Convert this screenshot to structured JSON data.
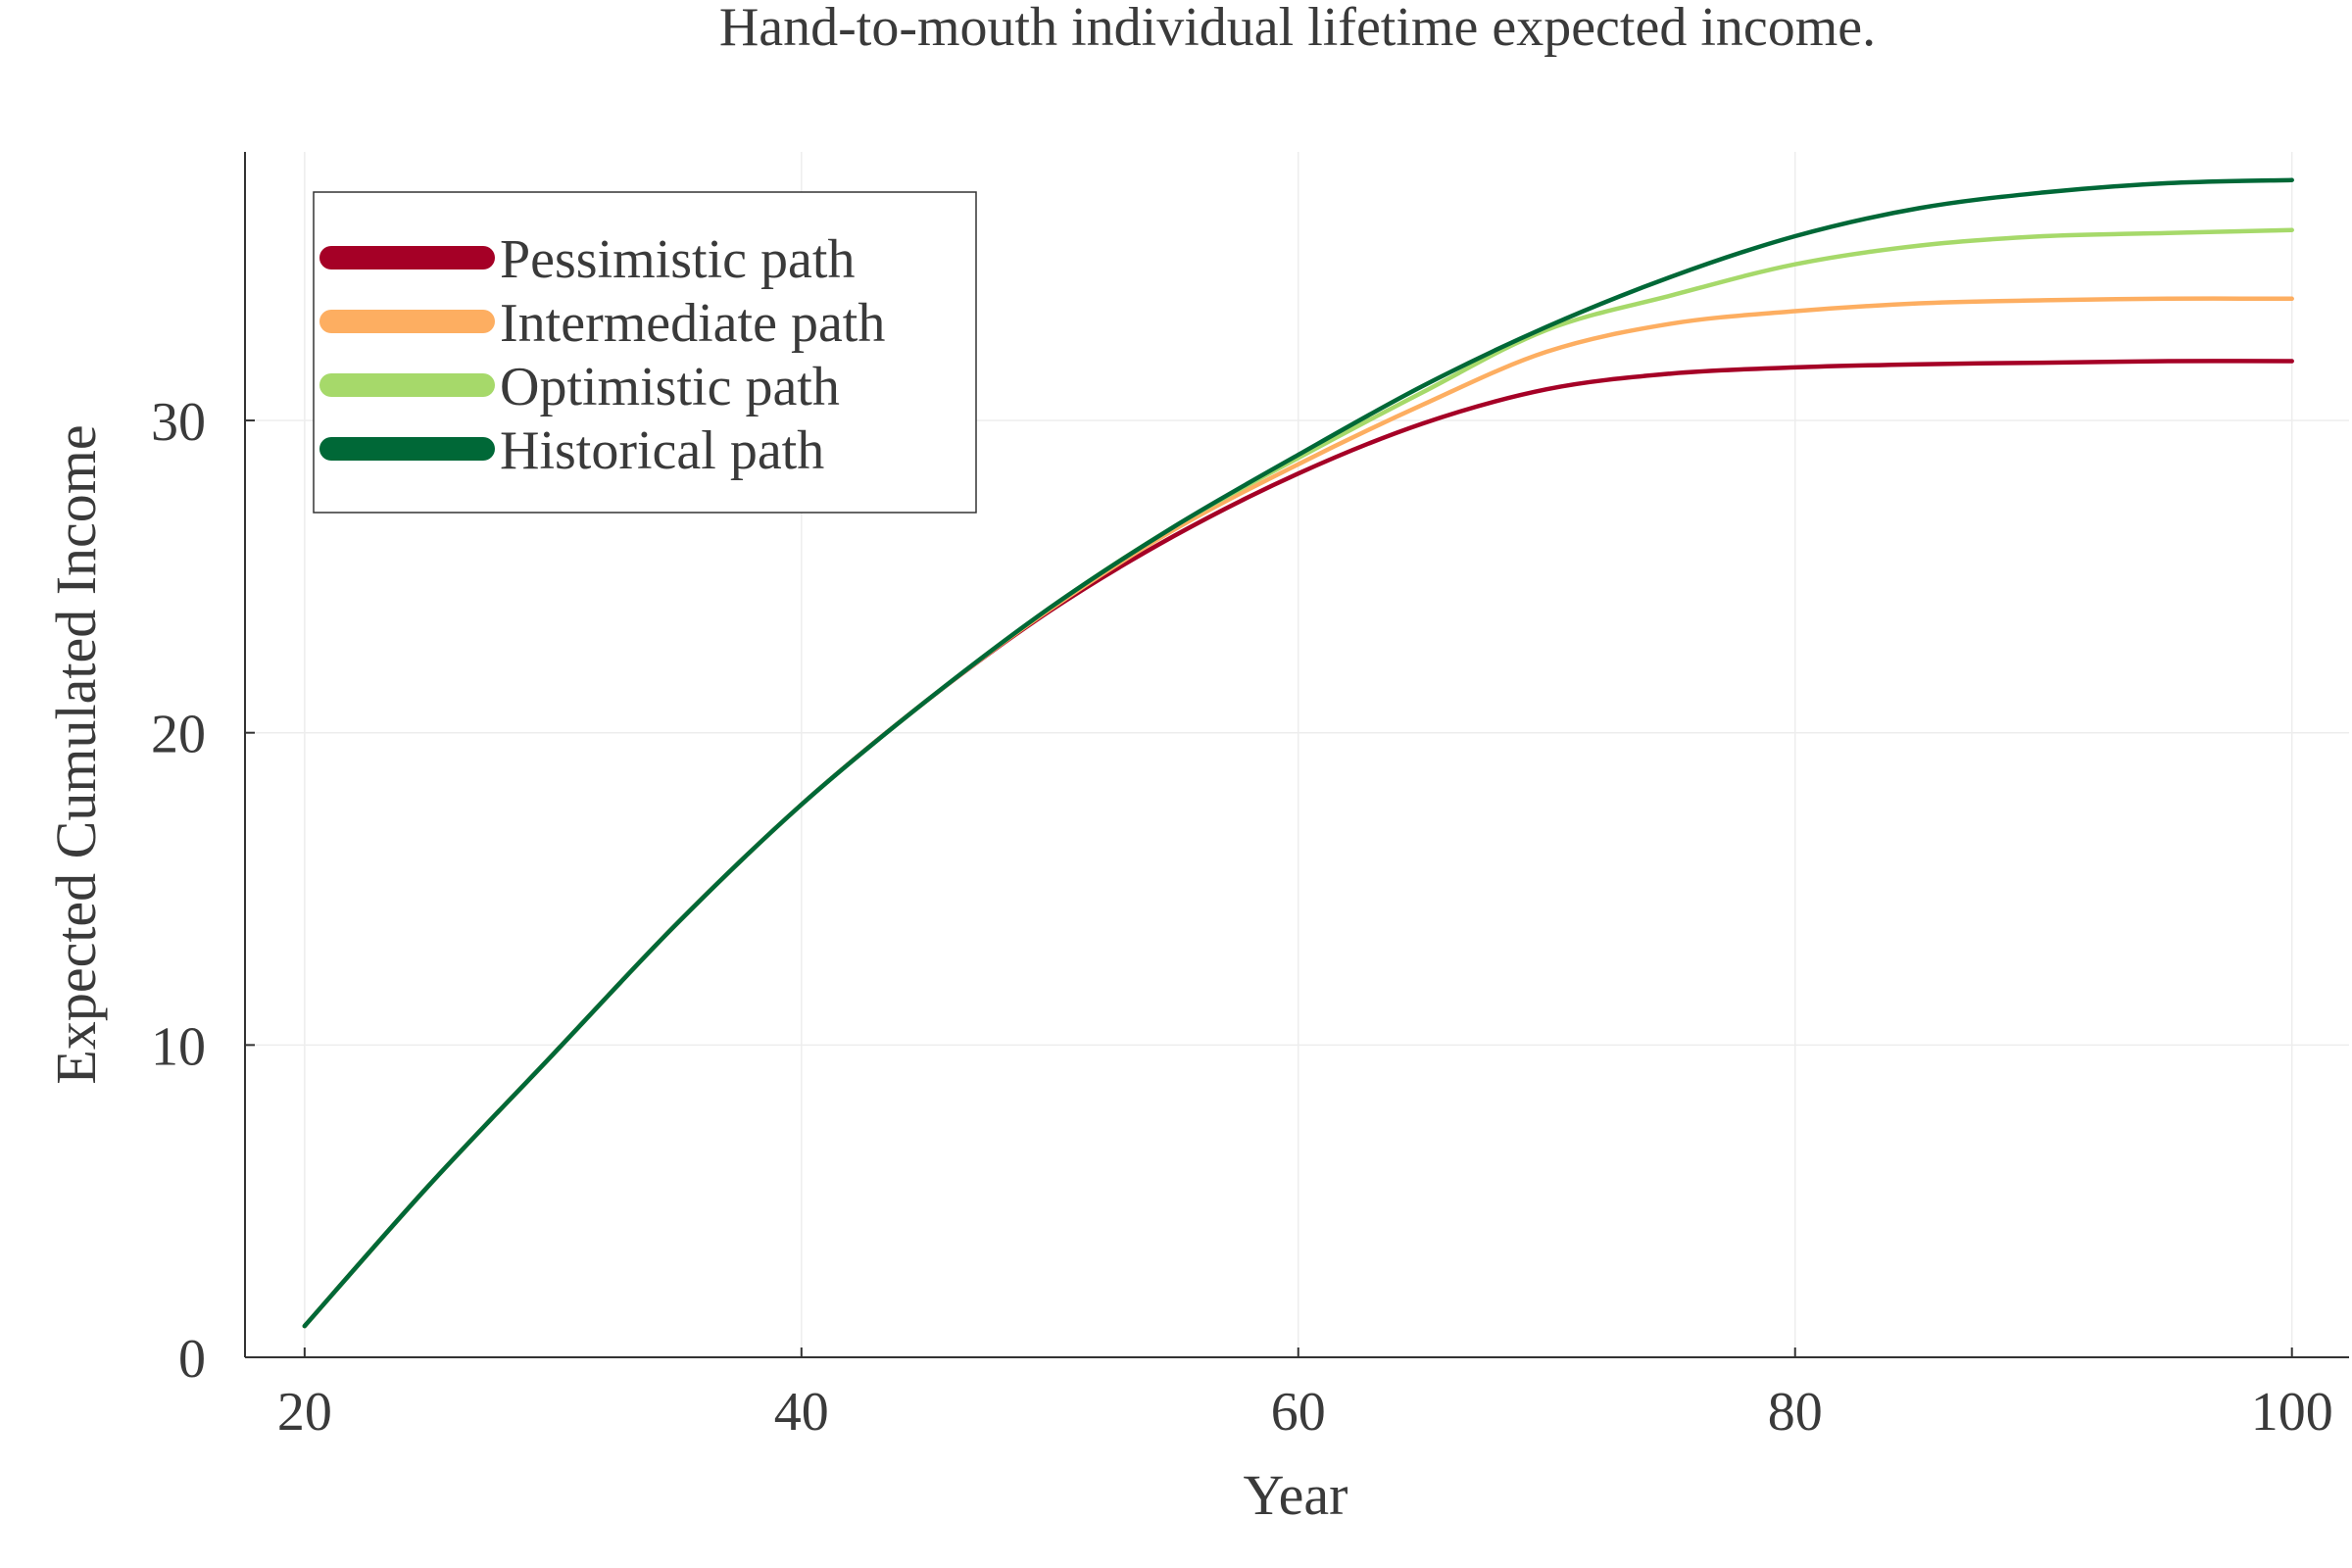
{
  "chart_data": {
    "type": "line",
    "title": "Hand-to-mouth individual lifetime expected income.",
    "xlabel": "Year",
    "ylabel": "Expected Cumulated Income",
    "xlim": [
      17.6,
      102.3
    ],
    "ylim": [
      0,
      38.6
    ],
    "xticks": [
      20,
      40,
      60,
      80,
      100
    ],
    "yticks": [
      0,
      10,
      20,
      30
    ],
    "grid": true,
    "legend_position": "top-left",
    "x": [
      20,
      25,
      30,
      35,
      40,
      45,
      50,
      55,
      60,
      65,
      70,
      75,
      80,
      85,
      90,
      95,
      100
    ],
    "series": [
      {
        "name": "Pessimistic path",
        "color": "#a50026",
        "values": [
          1.0,
          5.5,
          9.7,
          13.9,
          17.7,
          21.0,
          23.9,
          26.3,
          28.3,
          29.9,
          31.0,
          31.5,
          31.7,
          31.8,
          31.85,
          31.9,
          31.9
        ]
      },
      {
        "name": "Intermediate path",
        "color": "#fdae61",
        "values": [
          1.0,
          5.5,
          9.7,
          13.9,
          17.7,
          21.0,
          23.95,
          26.5,
          28.6,
          30.5,
          32.2,
          33.1,
          33.5,
          33.75,
          33.85,
          33.9,
          33.9
        ]
      },
      {
        "name": "Optimistic path",
        "color": "#a6d96a",
        "values": [
          1.0,
          5.5,
          9.7,
          13.9,
          17.7,
          21.0,
          24.0,
          26.6,
          28.8,
          30.9,
          32.9,
          34.0,
          35.0,
          35.6,
          35.9,
          36.0,
          36.1
        ]
      },
      {
        "name": "Historical path",
        "color": "#006837",
        "values": [
          1.0,
          5.5,
          9.7,
          13.9,
          17.7,
          21.0,
          24.0,
          26.6,
          28.9,
          31.1,
          33.0,
          34.6,
          35.9,
          36.8,
          37.3,
          37.6,
          37.7
        ]
      }
    ]
  }
}
